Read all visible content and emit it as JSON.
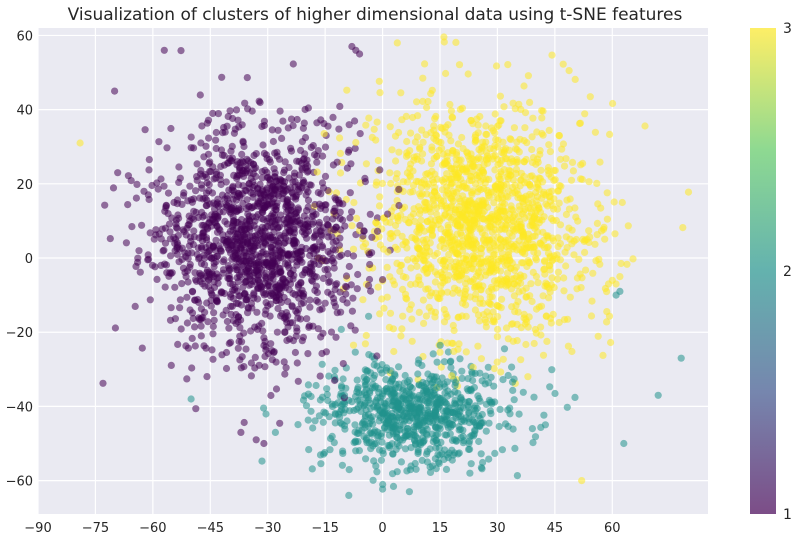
{
  "chart_data": {
    "type": "scatter",
    "title": "Visualization of clusters of higher dimensional data using t-SNE features",
    "xlabel": "",
    "ylabel": "",
    "xlim": [
      -90,
      85
    ],
    "ylim": [
      -69,
      62
    ],
    "x_ticks": [
      -90,
      -75,
      -60,
      -45,
      -30,
      -15,
      0,
      15,
      30,
      45,
      60
    ],
    "y_ticks": [
      -60,
      -40,
      -20,
      0,
      20,
      40,
      60
    ],
    "grid": true,
    "colorbar": {
      "ticks": [
        1,
        2,
        3
      ],
      "colormap": "viridis",
      "colors": [
        "#440154",
        "#21918c",
        "#fde725"
      ]
    },
    "plot_background": "#eaeaf2",
    "marker_alpha": 0.55,
    "series": [
      {
        "class": 1,
        "color": "#440154",
        "center": [
          -33,
          5
        ],
        "spread": [
          13,
          15
        ],
        "count": 1500,
        "outliers": [
          [
            -70,
            45
          ],
          [
            -57,
            56
          ],
          [
            -8,
            57
          ],
          [
            -7,
            56
          ],
          [
            -6,
            55
          ],
          [
            -37,
            -47
          ],
          [
            -33,
            -49
          ],
          [
            -31,
            -50
          ]
        ]
      },
      {
        "class": 2,
        "color": "#21918c",
        "center": [
          8,
          -42
        ],
        "spread": [
          13,
          7
        ],
        "count": 800,
        "outliers": [
          [
            62,
            -9
          ],
          [
            61,
            -10
          ],
          [
            72,
            -37
          ],
          [
            63,
            -50
          ],
          [
            78,
            -27
          ],
          [
            -50,
            -38
          ],
          [
            -28,
            -47
          ],
          [
            7,
            -63
          ]
        ]
      },
      {
        "class": 3,
        "color": "#fde725",
        "center": [
          25,
          10
        ],
        "spread": [
          14,
          16
        ],
        "count": 1500,
        "outliers": [
          [
            -79,
            31
          ],
          [
            52,
            -60
          ],
          [
            60,
            -6
          ],
          [
            61,
            -7
          ],
          [
            59,
            -7
          ],
          [
            62,
            -5
          ]
        ]
      }
    ]
  }
}
